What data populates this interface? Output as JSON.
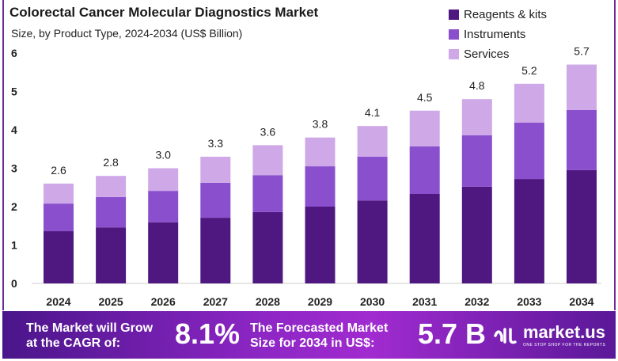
{
  "chart_data": {
    "type": "bar",
    "stacked": true,
    "title": "Colorectal Cancer Molecular Diagnostics Market",
    "subtitle": "Size, by Product Type, 2024-2034 (US$ Billion)",
    "categories": [
      "2024",
      "2025",
      "2026",
      "2027",
      "2028",
      "2029",
      "2030",
      "2031",
      "2032",
      "2033",
      "2034"
    ],
    "series": [
      {
        "name": "Reagents & kits",
        "color": "#4f1780",
        "values": [
          1.36,
          1.46,
          1.59,
          1.71,
          1.86,
          2.0,
          2.16,
          2.33,
          2.52,
          2.72,
          2.95
        ]
      },
      {
        "name": "Instruments",
        "color": "#8a4fcc",
        "values": [
          0.72,
          0.79,
          0.82,
          0.91,
          0.96,
          1.05,
          1.14,
          1.24,
          1.34,
          1.47,
          1.57
        ]
      },
      {
        "name": "Services",
        "color": "#cfa8e8",
        "values": [
          0.52,
          0.55,
          0.59,
          0.68,
          0.78,
          0.75,
          0.8,
          0.93,
          0.94,
          1.01,
          1.18
        ]
      }
    ],
    "totals": [
      "2.6",
      "2.8",
      "3.0",
      "3.3",
      "3.6",
      "3.8",
      "4.1",
      "4.5",
      "4.8",
      "5.2",
      "5.7"
    ],
    "yticks": [
      "0",
      "1",
      "2",
      "3",
      "4",
      "5",
      "6"
    ],
    "ylim": [
      0,
      6
    ],
    "grid": false,
    "legend": "top-right"
  },
  "banner": {
    "cagr_text_1": "The Market will Grow",
    "cagr_text_2": "at the CAGR of:",
    "cagr_value": "8.1%",
    "forecast_text_1": "The Forecasted Market",
    "forecast_text_2": "Size for 2034 in US$:",
    "forecast_value": "5.7 B",
    "logo_name": "market.us",
    "logo_tagline": "ONE STOP SHOP FOR THE REPORTS"
  }
}
